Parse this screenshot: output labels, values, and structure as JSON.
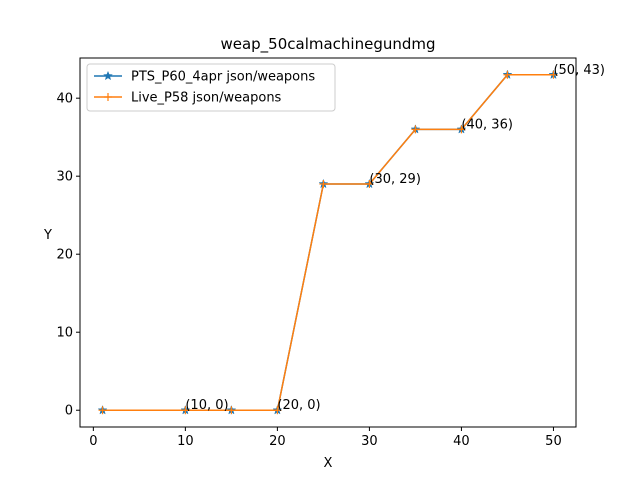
{
  "chart_data": {
    "type": "line",
    "title": "weap_50calmachinegundmg",
    "xlabel": "X",
    "ylabel": "Y",
    "xlim": [
      -1.45,
      52.45
    ],
    "ylim": [
      -2.15,
      45.15
    ],
    "xticks": [
      0,
      10,
      20,
      30,
      40,
      50
    ],
    "yticks": [
      0,
      10,
      20,
      30,
      40
    ],
    "grid": false,
    "legend_position": "upper left",
    "series": [
      {
        "name": "PTS_P60_4apr json/weapons",
        "color": "#1f77b4",
        "marker": "star",
        "x": [
          1,
          10,
          15,
          20,
          25,
          30,
          35,
          40,
          45,
          50
        ],
        "y": [
          0,
          0,
          0,
          0,
          29,
          29,
          36,
          36,
          43,
          43
        ]
      },
      {
        "name": "Live_P58 json/weapons",
        "color": "#ff7f0e",
        "marker": "plus",
        "x": [
          1,
          10,
          15,
          20,
          25,
          30,
          35,
          40,
          45,
          50
        ],
        "y": [
          0,
          0,
          0,
          0,
          29,
          29,
          36,
          36,
          43,
          43
        ]
      }
    ],
    "annotations": [
      {
        "text": "(10, 0)",
        "x": 10,
        "y": 0
      },
      {
        "text": "(20, 0)",
        "x": 20,
        "y": 0
      },
      {
        "text": "(30, 29)",
        "x": 30,
        "y": 29
      },
      {
        "text": "(40, 36)",
        "x": 40,
        "y": 36
      },
      {
        "text": "(50, 43)",
        "x": 50,
        "y": 43
      }
    ]
  }
}
